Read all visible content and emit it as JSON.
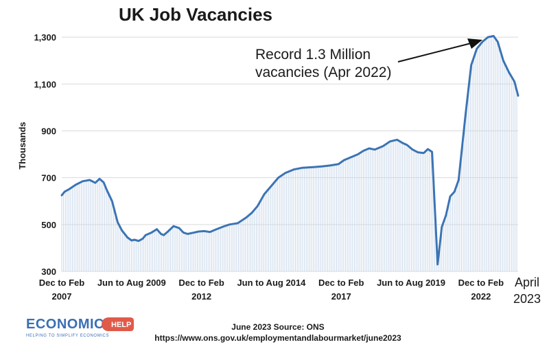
{
  "chart_data": {
    "type": "line",
    "title": "UK Job Vacancies",
    "ylabel": "Thousands",
    "xlabel": "",
    "ylim": [
      300,
      1400
    ],
    "yticks": [
      300,
      500,
      700,
      900,
      1100,
      1300
    ],
    "ytick_labels": [
      "300",
      "500",
      "700",
      "900",
      "1,100",
      "1,300"
    ],
    "grid": "horizontal",
    "line_color": "#3b74b4",
    "fill_color": "#c8d7ea",
    "xtick_labels": [
      {
        "text": "Dec to Feb",
        "sub": "2007",
        "t": 2007.0
      },
      {
        "text": "Jun to Aug 2009",
        "sub": "",
        "t": 2009.5
      },
      {
        "text": "Dec to Feb",
        "sub": "2012",
        "t": 2012.0
      },
      {
        "text": "Jun to Aug 2014",
        "sub": "",
        "t": 2014.5
      },
      {
        "text": "Dec to Feb",
        "sub": "2017",
        "t": 2017.0
      },
      {
        "text": "Jun to Aug 2019",
        "sub": "",
        "t": 2019.5
      },
      {
        "text": "Dec to Feb",
        "sub": "2022",
        "t": 2022.0
      }
    ],
    "end_label": {
      "text": "April",
      "sub": "2023"
    },
    "series": [
      {
        "name": "",
        "x": [
          2007.0,
          2007.1,
          2007.25,
          2007.5,
          2007.75,
          2008.0,
          2008.2,
          2008.35,
          2008.5,
          2008.6,
          2008.8,
          2009.0,
          2009.15,
          2009.35,
          2009.5,
          2009.6,
          2009.75,
          2009.9,
          2010.0,
          2010.2,
          2010.4,
          2010.55,
          2010.65,
          2010.8,
          2011.0,
          2011.2,
          2011.35,
          2011.5,
          2011.7,
          2011.9,
          2012.1,
          2012.3,
          2012.5,
          2012.8,
          2013.0,
          2013.3,
          2013.6,
          2013.8,
          2014.0,
          2014.25,
          2014.5,
          2014.75,
          2015.0,
          2015.3,
          2015.6,
          2016.0,
          2016.3,
          2016.6,
          2016.9,
          2017.1,
          2017.4,
          2017.6,
          2017.8,
          2018.0,
          2018.2,
          2018.5,
          2018.75,
          2019.0,
          2019.2,
          2019.35,
          2019.55,
          2019.75,
          2019.95,
          2020.1,
          2020.25,
          2020.45,
          2020.6,
          2020.75,
          2020.9,
          2021.05,
          2021.2,
          2021.45,
          2021.65,
          2021.85,
          2022.05,
          2022.25,
          2022.45,
          2022.6,
          2022.8,
          2023.0,
          2023.2,
          2023.33
        ],
        "y": [
          625,
          640,
          650,
          670,
          685,
          690,
          678,
          695,
          680,
          650,
          600,
          510,
          475,
          445,
          432,
          435,
          430,
          440,
          455,
          465,
          480,
          460,
          455,
          470,
          493,
          485,
          466,
          460,
          465,
          470,
          472,
          468,
          478,
          492,
          500,
          506,
          530,
          550,
          578,
          630,
          665,
          700,
          720,
          735,
          742,
          745,
          748,
          752,
          758,
          775,
          790,
          800,
          815,
          825,
          820,
          835,
          855,
          862,
          848,
          840,
          820,
          808,
          805,
          822,
          810,
          330,
          490,
          540,
          620,
          640,
          690,
          970,
          1180,
          1250,
          1280,
          1300,
          1305,
          1280,
          1200,
          1150,
          1110,
          1050
        ]
      }
    ]
  },
  "annotation": {
    "line1": "Record 1.3 Million",
    "line2": "vacancies (Apr 2022)"
  },
  "footer": {
    "source_line1": "June 2023 Source: ONS",
    "source_line2": "https://www.ons.gov.uk/employmentandlabourmarket/june2023"
  },
  "logo": {
    "name": "ECONOMICS",
    "badge": "HELP",
    "tagline": "HELPING TO SIMPLIFY ECONOMICS"
  }
}
